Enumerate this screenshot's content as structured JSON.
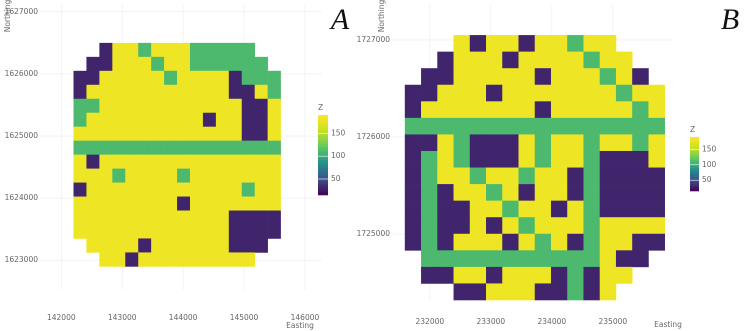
{
  "chart_data": [
    {
      "type": "heatmap",
      "panel_label": "A",
      "xlabel": "Easting",
      "ylabel": "Northing",
      "legend_title": "Z",
      "xlim": [
        141650,
        146280
      ],
      "ylim": [
        1622520,
        1627110
      ],
      "xticks": [
        142000,
        143000,
        144000,
        145000,
        146000
      ],
      "yticks": [
        1623000,
        1624000,
        1625000,
        1626000,
        1627000
      ],
      "x_extent": [
        142200,
        145600
      ],
      "y_extent": [
        1622900,
        1626500
      ],
      "zlim": [
        15,
        190
      ],
      "zticks": [
        50,
        100,
        150
      ],
      "grid": true,
      "colormap": "viridis",
      "z": [
        [
          null,
          null,
          30,
          180,
          180,
          110,
          180,
          180,
          180,
          110,
          110,
          110,
          110,
          110,
          null,
          null
        ],
        [
          null,
          30,
          30,
          180,
          180,
          180,
          110,
          180,
          180,
          110,
          110,
          110,
          110,
          110,
          110,
          null
        ],
        [
          30,
          30,
          180,
          180,
          180,
          180,
          180,
          110,
          180,
          180,
          180,
          180,
          30,
          110,
          110,
          110
        ],
        [
          30,
          180,
          180,
          180,
          180,
          180,
          180,
          180,
          180,
          180,
          180,
          180,
          30,
          30,
          180,
          110
        ],
        [
          110,
          110,
          180,
          180,
          180,
          180,
          180,
          180,
          180,
          180,
          180,
          180,
          180,
          30,
          30,
          180
        ],
        [
          110,
          180,
          180,
          180,
          180,
          180,
          180,
          180,
          180,
          180,
          30,
          180,
          180,
          30,
          30,
          180
        ],
        [
          180,
          180,
          180,
          180,
          180,
          180,
          180,
          180,
          180,
          180,
          180,
          180,
          180,
          30,
          30,
          180
        ],
        [
          110,
          110,
          110,
          110,
          110,
          110,
          110,
          110,
          110,
          110,
          110,
          110,
          110,
          110,
          110,
          110
        ],
        [
          180,
          30,
          180,
          180,
          180,
          180,
          180,
          180,
          180,
          180,
          180,
          180,
          180,
          180,
          180,
          180
        ],
        [
          180,
          180,
          180,
          110,
          180,
          180,
          180,
          180,
          110,
          180,
          180,
          180,
          180,
          180,
          180,
          180
        ],
        [
          30,
          180,
          180,
          180,
          180,
          180,
          180,
          180,
          180,
          180,
          180,
          180,
          180,
          110,
          180,
          180
        ],
        [
          180,
          180,
          180,
          180,
          180,
          180,
          180,
          180,
          30,
          180,
          180,
          180,
          180,
          180,
          180,
          180
        ],
        [
          180,
          180,
          180,
          180,
          180,
          180,
          180,
          180,
          180,
          180,
          180,
          180,
          30,
          30,
          30,
          30
        ],
        [
          180,
          180,
          180,
          180,
          180,
          180,
          180,
          180,
          180,
          180,
          180,
          180,
          30,
          30,
          30,
          30
        ],
        [
          null,
          180,
          180,
          180,
          180,
          30,
          180,
          180,
          180,
          180,
          180,
          180,
          30,
          30,
          30,
          null
        ],
        [
          null,
          null,
          180,
          180,
          30,
          180,
          180,
          180,
          180,
          180,
          180,
          180,
          180,
          180,
          null,
          null
        ]
      ]
    },
    {
      "type": "heatmap",
      "panel_label": "B",
      "xlabel": "Easting",
      "ylabel": "Northing",
      "legend_title": "Z",
      "xlim": [
        231380,
        235970
      ],
      "ylim": [
        1724320,
        1727360
      ],
      "xticks": [
        232000,
        233000,
        234000,
        235000
      ],
      "yticks": [
        1725000,
        1726000,
        1727000
      ],
      "x_extent": [
        231590,
        235850
      ],
      "y_extent": [
        1724320,
        1727050
      ],
      "zlim": [
        15,
        190
      ],
      "zticks": [
        50,
        100,
        150
      ],
      "grid": true,
      "colormap": "viridis",
      "z": [
        [
          null,
          null,
          null,
          180,
          30,
          180,
          180,
          30,
          180,
          180,
          110,
          180,
          180,
          null,
          null,
          null
        ],
        [
          null,
          null,
          30,
          180,
          180,
          180,
          30,
          180,
          180,
          180,
          180,
          110,
          180,
          180,
          null,
          null
        ],
        [
          null,
          30,
          30,
          180,
          180,
          180,
          180,
          180,
          30,
          180,
          180,
          180,
          110,
          180,
          30,
          null
        ],
        [
          30,
          30,
          180,
          180,
          180,
          30,
          180,
          180,
          180,
          180,
          180,
          180,
          180,
          110,
          180,
          180
        ],
        [
          30,
          180,
          180,
          180,
          180,
          180,
          180,
          180,
          30,
          180,
          180,
          180,
          180,
          180,
          110,
          180
        ],
        [
          110,
          110,
          110,
          110,
          110,
          110,
          110,
          110,
          110,
          110,
          110,
          110,
          110,
          110,
          110,
          110
        ],
        [
          30,
          30,
          180,
          110,
          30,
          30,
          30,
          180,
          110,
          180,
          180,
          110,
          180,
          180,
          110,
          180
        ],
        [
          30,
          110,
          180,
          110,
          30,
          30,
          30,
          180,
          110,
          180,
          180,
          110,
          30,
          30,
          30,
          180
        ],
        [
          30,
          110,
          180,
          180,
          110,
          180,
          180,
          110,
          180,
          180,
          30,
          110,
          30,
          30,
          30,
          30
        ],
        [
          30,
          110,
          30,
          180,
          180,
          110,
          180,
          30,
          180,
          180,
          30,
          110,
          30,
          30,
          30,
          30
        ],
        [
          30,
          110,
          30,
          30,
          180,
          180,
          110,
          180,
          180,
          30,
          180,
          110,
          30,
          30,
          30,
          30
        ],
        [
          30,
          110,
          30,
          30,
          180,
          30,
          180,
          110,
          180,
          180,
          180,
          110,
          180,
          180,
          180,
          180
        ],
        [
          30,
          110,
          30,
          180,
          180,
          180,
          30,
          180,
          110,
          180,
          30,
          110,
          180,
          180,
          30,
          30
        ],
        [
          null,
          110,
          110,
          110,
          110,
          110,
          110,
          110,
          110,
          110,
          110,
          110,
          180,
          30,
          30,
          null
        ],
        [
          null,
          30,
          30,
          180,
          180,
          30,
          180,
          180,
          180,
          30,
          110,
          30,
          180,
          180,
          null,
          null
        ],
        [
          null,
          null,
          null,
          30,
          30,
          180,
          180,
          180,
          30,
          30,
          110,
          30,
          180,
          null,
          null,
          null
        ]
      ]
    }
  ]
}
